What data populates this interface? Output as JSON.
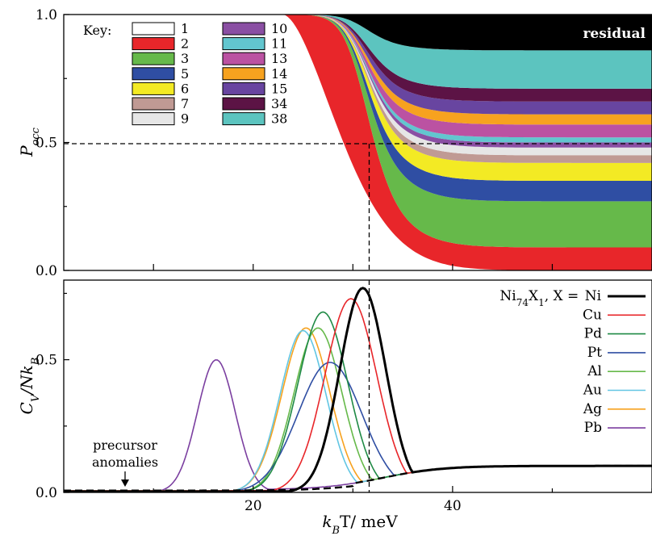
{
  "chart_data": [
    {
      "type": "area",
      "panel": "top",
      "ylabel": "P",
      "ylabel_sub": "occ",
      "xlim": [
        1,
        60
      ],
      "ylim": [
        0,
        1
      ],
      "yticks": [
        "0.0",
        "0.5",
        "1.0"
      ],
      "key_title": "Key:",
      "reference_lines": {
        "y": 0.5,
        "x": 31.0
      },
      "residual_label": "residual",
      "series": [
        {
          "name": "1",
          "color": "#ffffff",
          "final_value": 1.0
        },
        {
          "name": "2",
          "color": "#e8262a",
          "final_value": 0.09
        },
        {
          "name": "3",
          "color": "#66b94a",
          "final_value": 0.18
        },
        {
          "name": "5",
          "color": "#2f4ea3",
          "final_value": 0.08
        },
        {
          "name": "6",
          "color": "#f3ea24",
          "final_value": 0.07
        },
        {
          "name": "7",
          "color": "#c09a94",
          "final_value": 0.03
        },
        {
          "name": "9",
          "color": "#e6e6e6",
          "final_value": 0.03
        },
        {
          "name": "10",
          "color": "#8a4fa3",
          "final_value": 0.02
        },
        {
          "name": "11",
          "color": "#62c6cf",
          "final_value": 0.02
        },
        {
          "name": "13",
          "color": "#bb52a2",
          "final_value": 0.05
        },
        {
          "name": "14",
          "color": "#f7a21f",
          "final_value": 0.04
        },
        {
          "name": "15",
          "color": "#6845a0",
          "final_value": 0.05
        },
        {
          "name": "34",
          "color": "#5c1345",
          "final_value": 0.05
        },
        {
          "name": "38",
          "color": "#5cc4bf",
          "final_value": 0.15
        },
        {
          "name": "residual",
          "color": "#000000",
          "final_value": 0.14
        }
      ]
    },
    {
      "type": "line",
      "panel": "bottom",
      "xlabel": "k",
      "xlabel_sub": "B",
      "xlabel_unit": "T/ meV",
      "ylabel": "C",
      "ylabel_sub": "V",
      "ylabel_den": "/Nk",
      "ylabel_den_sub": "B",
      "xlim": [
        1,
        60
      ],
      "ylim": [
        0,
        0.77
      ],
      "xticks": [
        "20",
        "40"
      ],
      "yticks": [
        "0.0",
        "0.5"
      ],
      "legend_title": "Ni",
      "legend_title_sub1": "74",
      "legend_title_mid": "X",
      "legend_title_sub2": "1",
      "legend_title_tail": ", X = ",
      "annotation": [
        "precursor",
        "anomalies"
      ],
      "series": [
        {
          "name": "Ni",
          "color": "#000000",
          "peak_x": 31.0,
          "peak_y": 0.77,
          "width": 2.3,
          "stroke": 3
        },
        {
          "name": "Cu",
          "color": "#e8262a",
          "peak_x": 29.8,
          "peak_y": 0.73,
          "width": 2.6,
          "stroke": 1.6
        },
        {
          "name": "Pd",
          "color": "#1f8a45",
          "peak_x": 27.0,
          "peak_y": 0.68,
          "width": 2.5,
          "stroke": 1.6
        },
        {
          "name": "Pt",
          "color": "#2f4ea3",
          "peak_x": 27.7,
          "peak_y": 0.49,
          "width": 3.2,
          "stroke": 1.6
        },
        {
          "name": "Al",
          "color": "#66b94a",
          "peak_x": 26.5,
          "peak_y": 0.62,
          "width": 2.4,
          "stroke": 1.6
        },
        {
          "name": "Au",
          "color": "#62c6e3",
          "peak_x": 25.0,
          "peak_y": 0.61,
          "width": 2.3,
          "stroke": 1.6
        },
        {
          "name": "Ag",
          "color": "#f7a21f",
          "peak_x": 25.3,
          "peak_y": 0.62,
          "width": 2.4,
          "stroke": 1.6
        },
        {
          "name": "Pb",
          "color": "#7b3fa0",
          "peak_x": 16.3,
          "peak_y": 0.5,
          "width": 1.9,
          "stroke": 1.6
        }
      ]
    }
  ]
}
